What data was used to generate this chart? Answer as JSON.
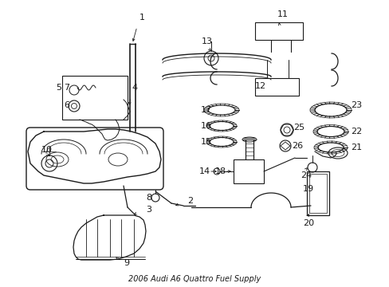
{
  "title": "2006 Audi A6 Quattro Fuel Supply",
  "bg_color": "#ffffff",
  "line_color": "#1a1a1a",
  "fig_width": 4.89,
  "fig_height": 3.6,
  "dpi": 100
}
